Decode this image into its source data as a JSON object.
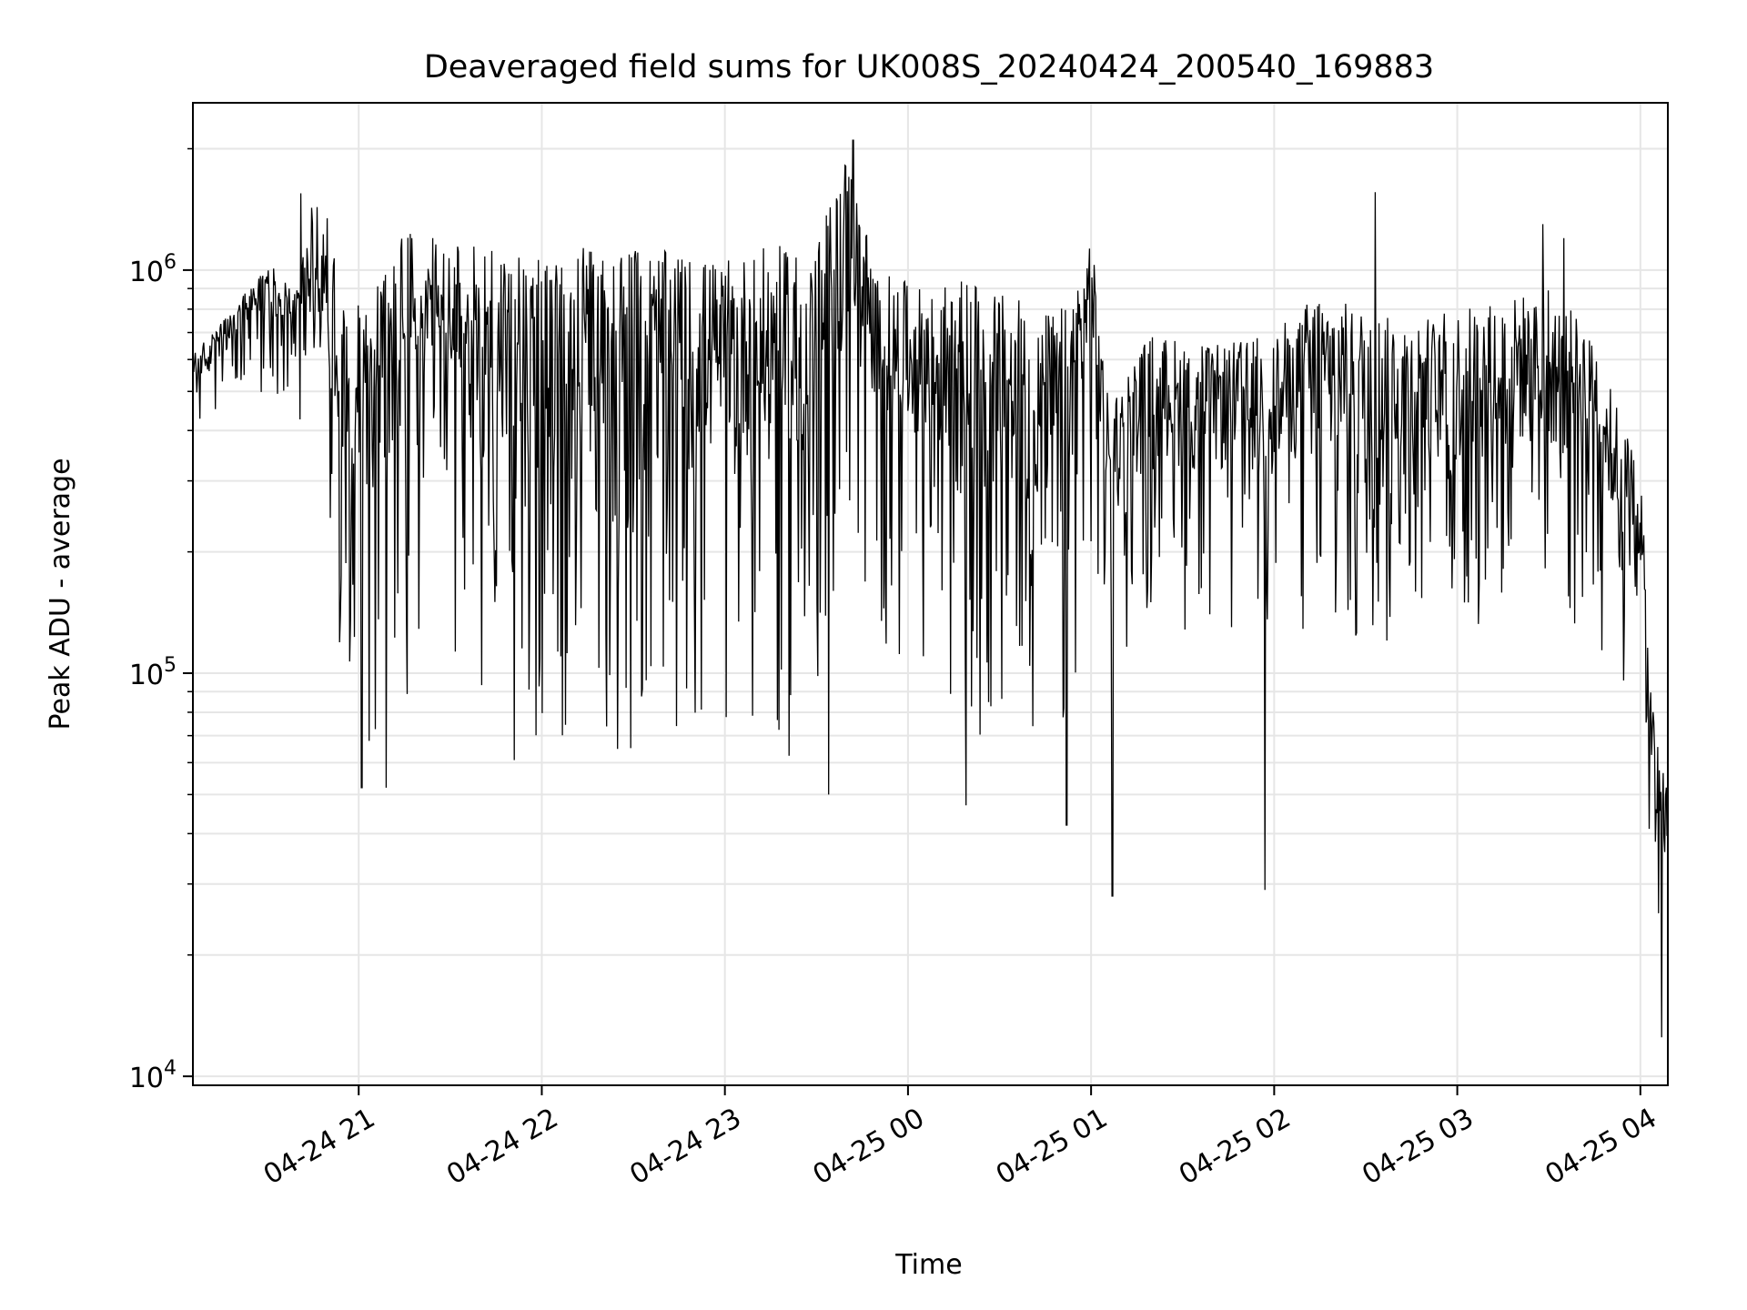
{
  "chart_data": {
    "type": "line",
    "title": "Deaveraged field sums for UK008S_20240424_200540_169883",
    "xlabel": "Time",
    "ylabel": "Peak ADU - average",
    "yscale": "log",
    "ylim": [
      9500,
      2600000
    ],
    "xlim": [
      "2024-04-24T20:05:40",
      "2024-04-25T04:09:00"
    ],
    "grid": true,
    "line_color": "#000000",
    "grid_color": "#e6e6e6",
    "x_ticks": [
      {
        "label": "04-24 21",
        "value": "2024-04-24T21:00:00"
      },
      {
        "label": "04-24 22",
        "value": "2024-04-24T22:00:00"
      },
      {
        "label": "04-24 23",
        "value": "2024-04-24T23:00:00"
      },
      {
        "label": "04-25 00",
        "value": "2024-04-25T00:00:00"
      },
      {
        "label": "04-25 01",
        "value": "2024-04-25T01:00:00"
      },
      {
        "label": "04-25 02",
        "value": "2024-04-25T02:00:00"
      },
      {
        "label": "04-25 03",
        "value": "2024-04-25T03:00:00"
      },
      {
        "label": "04-25 04",
        "value": "2024-04-25T04:00:00"
      }
    ],
    "y_ticks": [
      {
        "base": "10",
        "exp": "4",
        "value": 10000
      },
      {
        "base": "10",
        "exp": "5",
        "value": 100000
      },
      {
        "base": "10",
        "exp": "6",
        "value": 1000000
      }
    ],
    "series": [
      {
        "envelope": [
          {
            "t": "2024-04-24T20:05:40",
            "lo": 380000,
            "hi": 620000
          },
          {
            "t": "2024-04-24T20:20:00",
            "lo": 480000,
            "hi": 820000
          },
          {
            "t": "2024-04-24T20:30:00",
            "lo": 500000,
            "hi": 1050000
          },
          {
            "t": "2024-04-24T20:40:00",
            "lo": 460000,
            "hi": 900000
          },
          {
            "t": "2024-04-24T20:45:00",
            "lo": 270000,
            "hi": 1500000
          },
          {
            "t": "2024-04-24T20:50:00",
            "lo": 180000,
            "hi": 1400000
          },
          {
            "t": "2024-04-24T20:55:00",
            "lo": 100000,
            "hi": 800000
          },
          {
            "t": "2024-04-24T21:05:00",
            "lo": 62000,
            "hi": 950000
          },
          {
            "t": "2024-04-24T21:15:00",
            "lo": 58000,
            "hi": 1300000
          },
          {
            "t": "2024-04-24T21:30:00",
            "lo": 62000,
            "hi": 1150000
          },
          {
            "t": "2024-04-24T21:45:00",
            "lo": 58000,
            "hi": 1200000
          },
          {
            "t": "2024-04-24T22:00:00",
            "lo": 62000,
            "hi": 1050000
          },
          {
            "t": "2024-04-24T22:15:00",
            "lo": 65000,
            "hi": 1150000
          },
          {
            "t": "2024-04-24T22:30:00",
            "lo": 60000,
            "hi": 1150000
          },
          {
            "t": "2024-04-24T22:45:00",
            "lo": 68000,
            "hi": 1100000
          },
          {
            "t": "2024-04-24T23:00:00",
            "lo": 70000,
            "hi": 1050000
          },
          {
            "t": "2024-04-24T23:15:00",
            "lo": 65000,
            "hi": 1150000
          },
          {
            "t": "2024-04-24T23:30:00",
            "lo": 55000,
            "hi": 1150000
          },
          {
            "t": "2024-04-24T23:40:00",
            "lo": 180000,
            "hi": 2000000
          },
          {
            "t": "2024-04-24T23:50:00",
            "lo": 110000,
            "hi": 1000000
          },
          {
            "t": "2024-04-25T00:05:00",
            "lo": 110000,
            "hi": 900000
          },
          {
            "t": "2024-04-25T00:20:00",
            "lo": 58000,
            "hi": 950000
          },
          {
            "t": "2024-04-25T00:35:00",
            "lo": 60000,
            "hi": 850000
          },
          {
            "t": "2024-04-25T00:50:00",
            "lo": 50000,
            "hi": 800000
          },
          {
            "t": "2024-04-25T01:00:00",
            "lo": 200000,
            "hi": 1250000
          },
          {
            "t": "2024-04-25T01:05:00",
            "lo": 100000,
            "hi": 500000
          },
          {
            "t": "2024-04-25T01:20:00",
            "lo": 130000,
            "hi": 700000
          },
          {
            "t": "2024-04-25T01:40:00",
            "lo": 120000,
            "hi": 650000
          },
          {
            "t": "2024-04-25T02:00:00",
            "lo": 110000,
            "hi": 700000
          },
          {
            "t": "2024-04-25T02:15:00",
            "lo": 110000,
            "hi": 900000
          },
          {
            "t": "2024-04-25T02:30:00",
            "lo": 100000,
            "hi": 800000
          },
          {
            "t": "2024-04-25T02:45:00",
            "lo": 120000,
            "hi": 750000
          },
          {
            "t": "2024-04-25T03:00:00",
            "lo": 100000,
            "hi": 800000
          },
          {
            "t": "2024-04-25T03:15:00",
            "lo": 110000,
            "hi": 850000
          },
          {
            "t": "2024-04-25T03:30:00",
            "lo": 110000,
            "hi": 900000
          },
          {
            "t": "2024-04-25T03:45:00",
            "lo": 120000,
            "hi": 700000
          },
          {
            "t": "2024-04-25T03:55:00",
            "lo": 80000,
            "hi": 400000
          },
          {
            "t": "2024-04-25T04:00:00",
            "lo": 80000,
            "hi": 350000
          },
          {
            "t": "2024-04-25T04:03:00",
            "lo": 25000,
            "hi": 100000
          },
          {
            "t": "2024-04-25T04:09:00",
            "lo": 12000,
            "hi": 55000
          }
        ],
        "spikes": [
          {
            "t": "2024-04-24T20:41:00",
            "value": 1550000
          },
          {
            "t": "2024-04-24T21:01:00",
            "value": 52000
          },
          {
            "t": "2024-04-24T21:09:00",
            "value": 52000
          },
          {
            "t": "2024-04-24T23:34:00",
            "value": 50000
          },
          {
            "t": "2024-04-24T23:42:00",
            "value": 2100000
          },
          {
            "t": "2024-04-25T00:19:00",
            "value": 47000
          },
          {
            "t": "2024-04-25T00:52:00",
            "value": 42000
          },
          {
            "t": "2024-04-25T01:07:00",
            "value": 28000
          },
          {
            "t": "2024-04-25T01:57:00",
            "value": 29000
          },
          {
            "t": "2024-04-25T02:33:00",
            "value": 1560000
          },
          {
            "t": "2024-04-25T03:28:00",
            "value": 1300000
          },
          {
            "t": "2024-04-25T03:35:00",
            "value": 1200000
          },
          {
            "t": "2024-04-25T04:07:00",
            "value": 12500
          }
        ]
      }
    ]
  }
}
